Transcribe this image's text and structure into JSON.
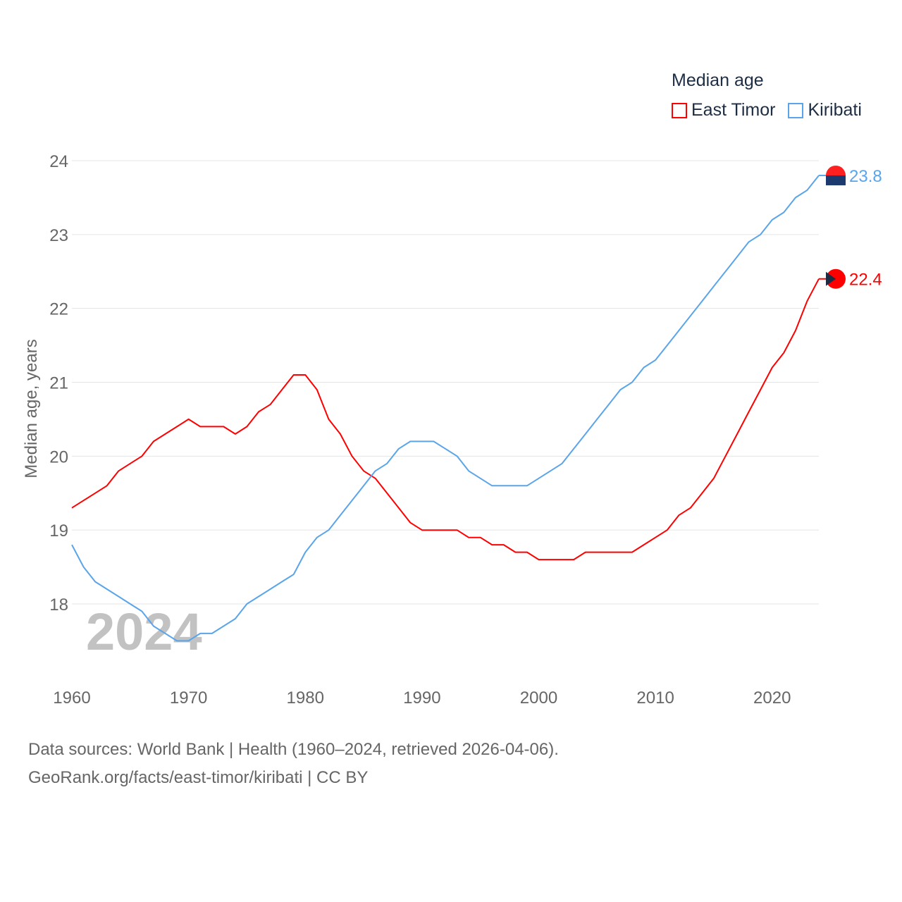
{
  "chart_data": {
    "type": "line",
    "legend_title": "Median age",
    "ylabel": "Median age, years",
    "xlabel": "",
    "xlim": [
      1960,
      2024
    ],
    "ylim": [
      17.2,
      24
    ],
    "x_ticks": [
      1960,
      1970,
      1980,
      1990,
      2000,
      2010,
      2020
    ],
    "y_ticks": [
      18,
      19,
      20,
      21,
      22,
      23,
      24
    ],
    "grid": true,
    "legend_position": "top-right",
    "year_watermark": "2024",
    "x_start": 1960,
    "series": [
      {
        "name": "East Timor",
        "color": "#ff0000",
        "end_label": "22.4",
        "values": [
          19.3,
          19.4,
          19.5,
          19.6,
          19.8,
          19.9,
          20.0,
          20.2,
          20.3,
          20.4,
          20.5,
          20.4,
          20.4,
          20.4,
          20.3,
          20.4,
          20.6,
          20.7,
          20.9,
          21.1,
          21.1,
          20.9,
          20.5,
          20.3,
          20.0,
          19.8,
          19.7,
          19.5,
          19.3,
          19.1,
          19.0,
          19.0,
          19.0,
          19.0,
          18.9,
          18.9,
          18.8,
          18.8,
          18.7,
          18.7,
          18.6,
          18.6,
          18.6,
          18.6,
          18.7,
          18.7,
          18.7,
          18.7,
          18.7,
          18.8,
          18.9,
          19.0,
          19.2,
          19.3,
          19.5,
          19.7,
          20.0,
          20.3,
          20.6,
          20.9,
          21.2,
          21.4,
          21.7,
          22.1,
          22.4
        ]
      },
      {
        "name": "Kiribati",
        "color": "#5aa5ea",
        "end_label": "23.8",
        "values": [
          18.8,
          18.5,
          18.3,
          18.2,
          18.1,
          18.0,
          17.9,
          17.7,
          17.6,
          17.5,
          17.5,
          17.6,
          17.6,
          17.7,
          17.8,
          18.0,
          18.1,
          18.2,
          18.3,
          18.4,
          18.7,
          18.9,
          19.0,
          19.2,
          19.4,
          19.6,
          19.8,
          19.9,
          20.1,
          20.2,
          20.2,
          20.2,
          20.1,
          20.0,
          19.8,
          19.7,
          19.6,
          19.6,
          19.6,
          19.6,
          19.7,
          19.8,
          19.9,
          20.1,
          20.3,
          20.5,
          20.7,
          20.9,
          21.0,
          21.2,
          21.3,
          21.5,
          21.7,
          21.9,
          22.1,
          22.3,
          22.5,
          22.7,
          22.9,
          23.0,
          23.2,
          23.3,
          23.5,
          23.6,
          23.8
        ]
      }
    ]
  },
  "footer": {
    "line1": "Data sources: World Bank | Health (1960–2024, retrieved 2026-04-06).",
    "line2": "GeoRank.org/facts/east-timor/kiribati | CC BY"
  }
}
